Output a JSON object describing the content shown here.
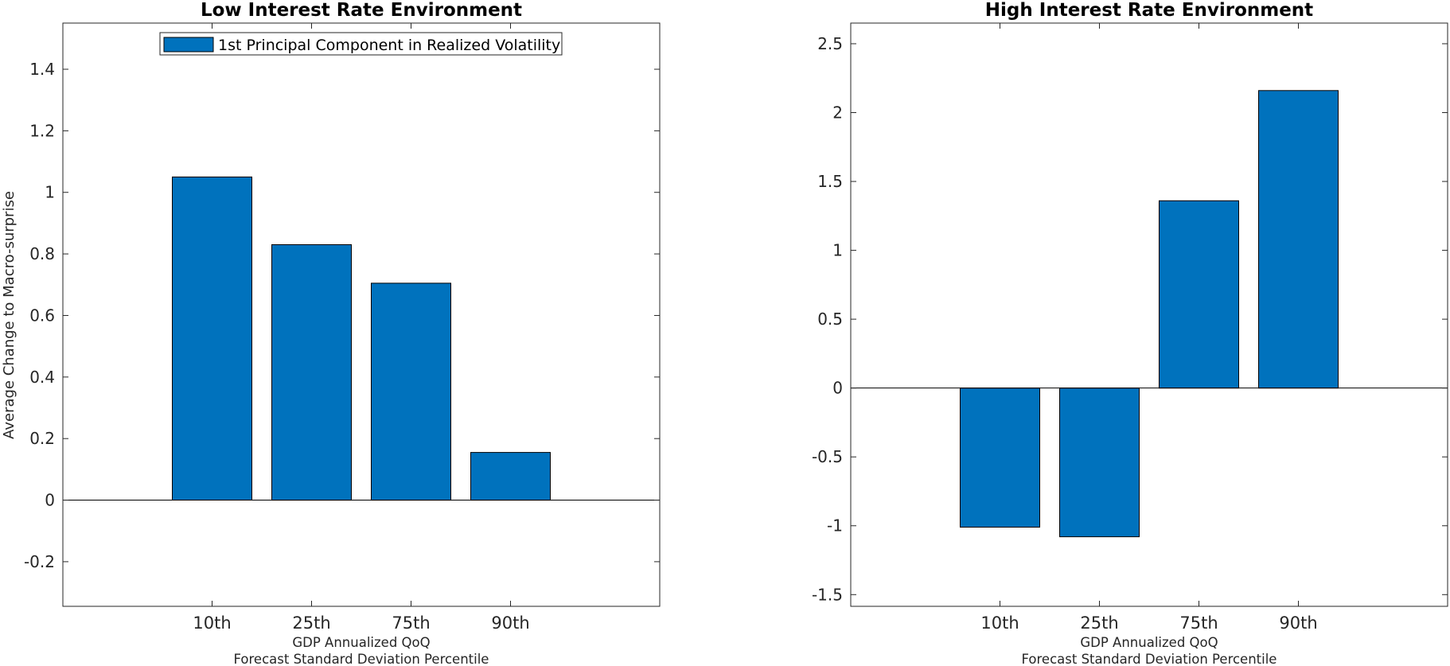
{
  "chart_data": [
    {
      "type": "bar",
      "title": "Low Interest Rate Environment",
      "categories": [
        "10th",
        "25th",
        "75th",
        "90th"
      ],
      "series": [
        {
          "name": "1st Principal Component in Realized Volatility",
          "values": [
            1.05,
            0.83,
            0.705,
            0.155
          ]
        }
      ],
      "xlabel": [
        "GDP Annualized QoQ",
        "Forecast Standard Deviation Percentile"
      ],
      "ylabel": "Average Change to Macro-surprise",
      "ylim": [
        -0.345,
        1.55
      ],
      "yticks": [
        -0.2,
        0,
        0.2,
        0.4,
        0.6,
        0.8,
        1,
        1.2,
        1.4
      ],
      "ytick_labels": [
        "-0.2",
        "0",
        "0.2",
        "0.4",
        "0.6",
        "0.8",
        "1",
        "1.2",
        "1.4"
      ],
      "legend": "top-center",
      "bar_color": "#0072BD"
    },
    {
      "type": "bar",
      "title": "High Interest Rate Environment",
      "categories": [
        "10th",
        "25th",
        "75th",
        "90th"
      ],
      "series": [
        {
          "values": [
            -1.01,
            -1.08,
            1.36,
            2.16
          ]
        }
      ],
      "xlabel": [
        "GDP Annualized QoQ",
        "Forecast Standard Deviation Percentile"
      ],
      "ylabel": "",
      "ylim": [
        -1.585,
        2.65
      ],
      "yticks": [
        -1.5,
        -1,
        -0.5,
        0,
        0.5,
        1,
        1.5,
        2,
        2.5
      ],
      "ytick_labels": [
        "-1.5",
        "-1",
        "-0.5",
        "0",
        "0.5",
        "1",
        "1.5",
        "2",
        "2.5"
      ],
      "bar_color": "#0072BD"
    }
  ]
}
